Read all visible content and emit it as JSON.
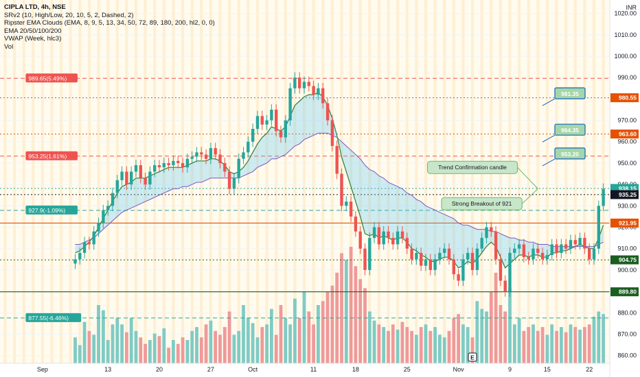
{
  "legend": {
    "symbol": "CIPLA LTD, 4h, NSE",
    "lines": [
      "SRv2 (10, High/Low, 20, 10, 5, 2, Dashed, 2)",
      "Ripster EMA Clouds (EMA, 8, 9, 5, 13, 34, 50, 72, 89, 180, 200, hl2, 0, 0)",
      "EMA 20/50/100/200",
      "VWAP (Week, hlc3)",
      "Vol"
    ]
  },
  "currency": "INR",
  "colors": {
    "bull": "#26a69a",
    "bear": "#ef5350",
    "resistance": "#ef5350",
    "support": "#089981",
    "level_orange": "#e65100",
    "support_dark": "#1b5e20",
    "highlight": "#fff3cd"
  },
  "chart_data": {
    "type": "candlestick",
    "title": "CIPLA LTD, 4h, NSE",
    "ylim": [
      857,
      1025
    ],
    "y_ticks": [
      860,
      870,
      880,
      890,
      900,
      910,
      920,
      930,
      940,
      950,
      960,
      970,
      980,
      990,
      1000,
      1010,
      1020
    ],
    "x_ticks": [
      {
        "label": "Sep",
        "bar": 8
      },
      {
        "label": "13",
        "bar": 22
      },
      {
        "label": "20",
        "bar": 33
      },
      {
        "label": "27",
        "bar": 44
      },
      {
        "label": "Oct",
        "bar": 53
      },
      {
        "label": "11",
        "bar": 66
      },
      {
        "label": "18",
        "bar": 75
      },
      {
        "label": "25",
        "bar": 86
      },
      {
        "label": "Nov",
        "bar": 97
      },
      {
        "label": "9",
        "bar": 108
      },
      {
        "label": "15",
        "bar": 116
      },
      {
        "label": "22",
        "bar": 125
      }
    ],
    "total_bars": 129,
    "close": [
      905,
      908,
      913,
      912,
      918,
      922,
      928,
      930,
      936,
      942,
      946,
      940,
      946,
      949,
      943,
      940,
      946,
      949,
      948,
      950,
      949,
      951,
      950,
      948,
      952,
      953,
      955,
      954,
      952,
      957,
      954,
      950,
      946,
      938,
      943,
      952,
      955,
      960,
      966,
      972,
      968,
      970,
      975,
      965,
      962,
      970,
      985,
      990,
      985,
      988,
      986,
      982,
      985,
      978,
      970,
      958,
      945,
      930,
      932,
      925,
      918,
      910,
      900,
      915,
      920,
      912,
      918,
      915,
      912,
      918,
      915,
      910,
      905,
      908,
      902,
      905,
      900,
      905,
      908,
      910,
      905,
      898,
      895,
      905,
      908,
      900,
      910,
      915,
      920,
      918,
      905,
      895,
      890,
      908,
      910,
      912,
      906,
      905,
      910,
      908,
      905,
      907,
      912,
      908,
      912,
      910,
      914,
      912,
      915,
      910,
      905,
      910,
      930,
      938
    ],
    "volume": [
      20,
      14,
      32,
      25,
      22,
      45,
      41,
      18,
      30,
      35,
      30,
      24,
      35,
      25,
      20,
      15,
      18,
      23,
      21,
      27,
      12,
      18,
      15,
      20,
      18,
      25,
      28,
      20,
      30,
      33,
      25,
      22,
      28,
      40,
      22,
      25,
      45,
      35,
      31,
      20,
      28,
      30,
      42,
      22,
      45,
      35,
      30,
      50,
      35,
      55,
      40,
      30,
      45,
      48,
      55,
      60,
      70,
      85,
      80,
      90,
      75,
      65,
      58,
      40,
      33,
      30,
      28,
      25,
      30,
      26,
      32,
      28,
      25,
      22,
      28,
      30,
      25,
      28,
      22,
      20,
      25,
      35,
      38,
      30,
      28,
      20,
      48,
      42,
      40,
      55,
      70,
      45,
      40,
      58,
      30,
      35,
      25,
      28,
      30,
      25,
      28,
      22,
      30,
      25,
      28,
      24,
      30,
      28,
      26,
      28,
      30,
      36,
      40,
      38
    ],
    "ema_fast": [
      908,
      909,
      911,
      913,
      916,
      920,
      924,
      928,
      932,
      936,
      939,
      940,
      941,
      943,
      943,
      943,
      944,
      945,
      946,
      947,
      948,
      948,
      948,
      948,
      949,
      950,
      951,
      951,
      951,
      952,
      952,
      951,
      949,
      946,
      945,
      946,
      948,
      951,
      955,
      959,
      962,
      964,
      967,
      966,
      965,
      967,
      972,
      977,
      979,
      981,
      982,
      982,
      983,
      981,
      977,
      971,
      963,
      953,
      946,
      939,
      932,
      925,
      917,
      916,
      917,
      915,
      916,
      915,
      914,
      915,
      915,
      913,
      910,
      909,
      907,
      906,
      904,
      904,
      905,
      906,
      906,
      904,
      901,
      902,
      904,
      903,
      905,
      908,
      911,
      913,
      911,
      906,
      901,
      903,
      905,
      907,
      907,
      906,
      907,
      907,
      906,
      906,
      908,
      908,
      909,
      909,
      910,
      911,
      912,
      911,
      910,
      910,
      915,
      921
    ],
    "ema_slow": [
      912,
      912,
      913,
      914,
      915,
      917,
      919,
      921,
      923,
      925,
      927,
      928,
      929,
      930,
      931,
      932,
      933,
      934,
      935,
      936,
      937,
      938,
      938,
      939,
      939,
      940,
      941,
      941,
      942,
      943,
      943,
      943,
      943,
      943,
      943,
      943,
      944,
      945,
      946,
      948,
      949,
      950,
      952,
      952,
      953,
      954,
      956,
      958,
      959,
      961,
      962,
      963,
      964,
      964,
      964,
      963,
      962,
      960,
      958,
      956,
      954,
      952,
      949,
      947,
      946,
      944,
      943,
      941,
      940,
      939,
      938,
      936,
      935,
      933,
      932,
      930,
      929,
      928,
      927,
      926,
      925,
      924,
      922,
      921,
      921,
      920,
      919,
      919,
      919,
      918,
      918,
      917,
      916,
      915,
      915,
      914,
      914,
      913,
      913,
      912,
      912,
      912,
      911,
      911,
      911,
      911,
      911,
      911,
      911,
      911,
      911,
      911,
      912,
      913
    ],
    "price_levels": [
      {
        "value": 989.65,
        "style": "dashed",
        "color": "#ef5350"
      },
      {
        "value": 980.55,
        "style": "dotted",
        "color": "#e65100"
      },
      {
        "value": 963.6,
        "style": "dotted",
        "color": "#e65100"
      },
      {
        "value": 953.25,
        "style": "dashed",
        "color": "#ef5350"
      },
      {
        "value": 938.15,
        "style": "dotted",
        "color": "#26a69a"
      },
      {
        "value": 935.25,
        "style": "dotted",
        "color": "#131722"
      },
      {
        "value": 927.9,
        "style": "dashed",
        "color": "#26a69a"
      },
      {
        "value": 921.95,
        "style": "solid",
        "color": "#e65100"
      },
      {
        "value": 904.75,
        "style": "dotted",
        "color": "#1b5e20"
      },
      {
        "value": 889.8,
        "style": "solid",
        "color": "#1b5e20"
      },
      {
        "value": 877.55,
        "style": "dashed",
        "color": "#26a69a"
      }
    ],
    "axis_tags": [
      {
        "text": "980.55",
        "value": 980.55,
        "bg": "#e65100",
        "fg": "#ffffff"
      },
      {
        "text": "963.60",
        "value": 963.6,
        "bg": "#e65100",
        "fg": "#ffffff"
      },
      {
        "text": "938.15",
        "value": 938.15,
        "bg": "#26a69a",
        "fg": "#ffffff"
      },
      {
        "text": "935.25",
        "value": 935.25,
        "bg": "#131722",
        "fg": "#ffffff"
      },
      {
        "text": "921.95",
        "value": 921.95,
        "bg": "#e65100",
        "fg": "#ffffff"
      },
      {
        "text": "904.75",
        "value": 904.75,
        "bg": "#1b5e20",
        "fg": "#ffffff"
      },
      {
        "text": "889.80",
        "value": 889.8,
        "bg": "#1b5e20",
        "fg": "#ffffff"
      }
    ],
    "level_labels": [
      {
        "text": "989.65(5.49%)",
        "value": 989.65,
        "bar": 5,
        "bg": "#ef5350",
        "fg": "#ffffff"
      },
      {
        "text": "953.25(1.61%)",
        "value": 953.25,
        "bar": 5,
        "bg": "#ef5350",
        "fg": "#ffffff"
      },
      {
        "text": "927.9(-1.09%)",
        "value": 927.9,
        "bar": 5,
        "bg": "#26a69a",
        "fg": "#ffffff"
      },
      {
        "text": "877.55(-6.46%)",
        "value": 877.55,
        "bar": 5,
        "bg": "#26a69a",
        "fg": "#ffffff"
      }
    ],
    "target_labels": [
      {
        "text": "981.35",
        "value": 981.35
      },
      {
        "text": "964.35",
        "value": 964.35
      },
      {
        "text": "953.20",
        "value": 953.2
      }
    ],
    "annotations": [
      {
        "text": "Trend Confirmation candle",
        "bar": 100,
        "value": 948
      },
      {
        "text": "Strong Breakout of 921",
        "bar": 102,
        "value": 931
      }
    ],
    "event_marker": "E"
  }
}
